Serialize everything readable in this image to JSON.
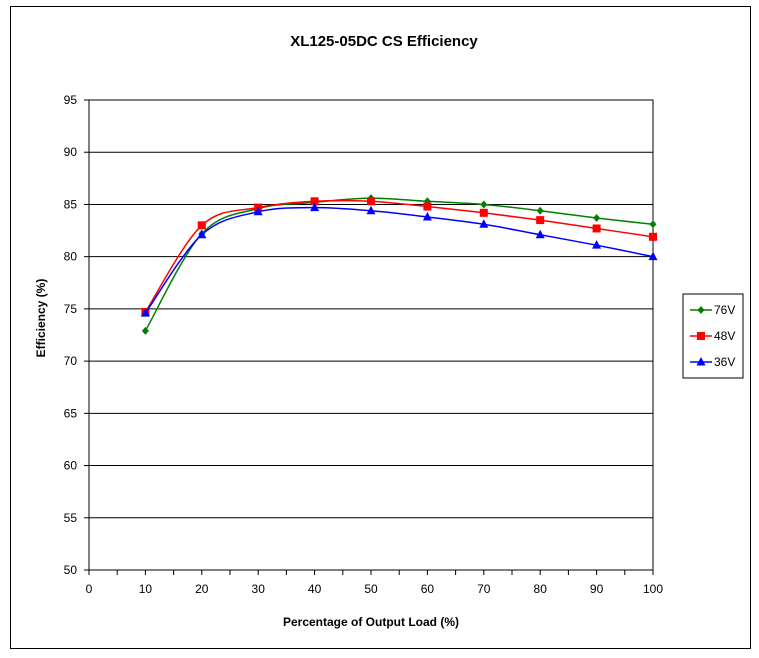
{
  "chart_data": {
    "type": "line",
    "title": "XL125-05DC  CS Efficiency",
    "xlabel": "Percentage of Output Load (%)",
    "ylabel": "Efficiency (%)",
    "xlim": [
      0,
      100
    ],
    "ylim": [
      50,
      95
    ],
    "xticks": [
      0,
      10,
      20,
      30,
      40,
      50,
      60,
      70,
      80,
      90,
      100
    ],
    "yticks": [
      50,
      55,
      60,
      65,
      70,
      75,
      80,
      85,
      90,
      95
    ],
    "grid": "horizontal",
    "legend_position": "right",
    "x": [
      10,
      20,
      30,
      40,
      50,
      60,
      70,
      80,
      90,
      100
    ],
    "series": [
      {
        "name": "76V",
        "color": "#008000",
        "marker": "diamond",
        "values": [
          72.9,
          82.2,
          84.6,
          85.2,
          85.6,
          85.3,
          85.0,
          84.4,
          83.7,
          83.1
        ]
      },
      {
        "name": "48V",
        "color": "#ff0000",
        "marker": "square",
        "values": [
          74.7,
          83.0,
          84.7,
          85.3,
          85.3,
          84.8,
          84.2,
          83.5,
          82.7,
          81.9
        ]
      },
      {
        "name": "36V",
        "color": "#0000ff",
        "marker": "triangle",
        "values": [
          74.6,
          82.1,
          84.3,
          84.7,
          84.4,
          83.8,
          83.1,
          82.1,
          81.1,
          80.0
        ]
      }
    ]
  }
}
